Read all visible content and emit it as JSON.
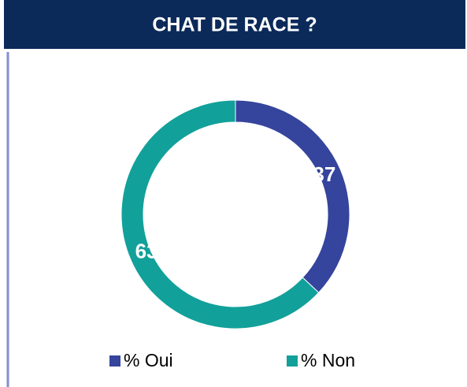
{
  "chart_data": {
    "type": "donut",
    "title": "CHAT DE RACE ?",
    "categories": [
      "% Oui",
      "% Non"
    ],
    "values": [
      37,
      63
    ],
    "colors": [
      "#35449c",
      "#12a09a"
    ],
    "legend": "bottom"
  }
}
